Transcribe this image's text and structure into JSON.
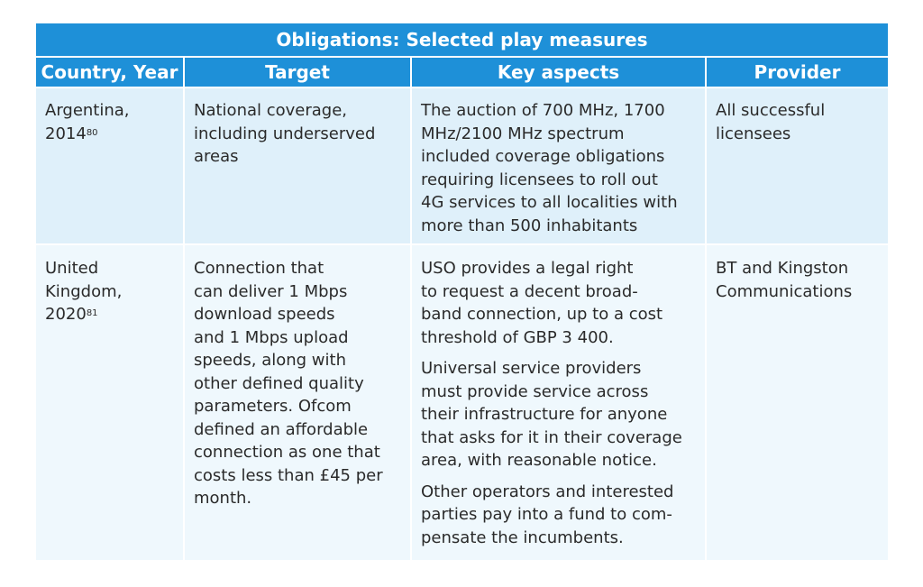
{
  "table": {
    "title": "Obligations: Selected play measures",
    "headers": [
      "Country, Year",
      "Target",
      "Key aspects",
      "Provider"
    ],
    "rows": [
      {
        "country": [
          "Argentina,",
          "2014"
        ],
        "country_ref": "80",
        "target": [
          "National coverage,",
          "including underserved",
          "areas"
        ],
        "key_aspects": [
          [
            "The auction of 700 MHz, 1700",
            "MHz/2100 MHz spectrum",
            "included coverage obligations",
            "requiring licensees to roll out",
            "4G services to all localities with",
            "more than 500 inhabitants"
          ]
        ],
        "provider": [
          "All successful",
          "licensees"
        ]
      },
      {
        "country": [
          "United",
          "Kingdom,",
          "2020"
        ],
        "country_ref": "81",
        "target": [
          "Connection that",
          "can deliver 1 Mbps",
          "download speeds",
          "and 1 Mbps upload",
          "speeds, along with",
          "other defined quality",
          "parameters. Ofcom",
          "defined an affordable",
          "connection as one that",
          "costs less than £45 per",
          "month."
        ],
        "key_aspects": [
          [
            "USO provides a legal right",
            "to request a decent broad-",
            "band connection, up to a cost",
            "threshold of GBP 3 400."
          ],
          [
            "Universal service providers",
            "must provide service across",
            "their infrastructure for anyone",
            "that asks for it in their coverage",
            "area, with reasonable notice."
          ],
          [
            "Other operators and interested",
            "parties pay into a fund to com-",
            "pensate the incumbents."
          ]
        ],
        "provider": [
          "BT and Kingston",
          "Communications"
        ]
      }
    ]
  }
}
